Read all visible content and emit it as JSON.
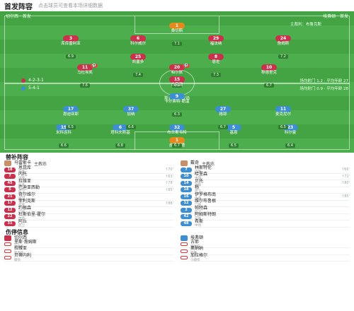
{
  "header": {
    "title": "首发阵容",
    "subtitle": "点击球员可查看本场详细数据"
  },
  "pitch": {
    "home_label": "切尔西 · 首发",
    "away_label": "埃弗顿 · 首发",
    "referee": "主裁判：布鲁克斯",
    "stadium": "斯坦福桥球场",
    "home_formation": "4-2-3-1",
    "away_formation": "5-4-1",
    "home_stat": "场均射门 1.2 · 平均年龄 27",
    "away_stat": "场均射门 0.9 · 平均年龄 28"
  },
  "home_players": [
    {
      "n": "1",
      "name": "桑切斯",
      "rate": "7.1",
      "role": "gk"
    },
    {
      "n": "3",
      "name": "库库雷利亚",
      "rate": "6.9",
      "role": "home"
    },
    {
      "n": "6",
      "name": "科尔威尔",
      "rate": "7.0",
      "role": "home"
    },
    {
      "n": "29",
      "name": "福法纳",
      "rate": "6.8",
      "role": "home"
    },
    {
      "n": "24",
      "name": "詹姆斯",
      "rate": "7.2",
      "role": "home"
    },
    {
      "n": "25",
      "name": "凯塞多",
      "rate": "7.4",
      "role": "home"
    },
    {
      "n": "8",
      "name": "恩佐",
      "rate": "7.3",
      "role": "home"
    },
    {
      "n": "11",
      "name": "马杜埃凯",
      "rate": "7.6",
      "role": "home",
      "badge": "⚽"
    },
    {
      "n": "20",
      "name": "帕尔默",
      "rate": "8.1",
      "role": "home",
      "badge": "⚽"
    },
    {
      "n": "10",
      "name": "穆德里克",
      "rate": "6.7",
      "role": "home"
    },
    {
      "n": "15",
      "name": "杰克逊",
      "rate": "7.0",
      "role": "home"
    }
  ],
  "away_players": [
    {
      "n": "1",
      "name": "皮克福德",
      "rate": "6.9",
      "role": "gk"
    },
    {
      "n": "19",
      "name": "米科连科",
      "rate": "6.6",
      "role": "away"
    },
    {
      "n": "6",
      "name": "塔科夫斯基",
      "rate": "6.8",
      "role": "away"
    },
    {
      "n": "32",
      "name": "布兰斯韦特",
      "rate": "6.7",
      "role": "away"
    },
    {
      "n": "5",
      "name": "基恩",
      "rate": "6.5",
      "role": "away"
    },
    {
      "n": "23",
      "name": "科尔曼",
      "rate": "6.4",
      "role": "away"
    },
    {
      "n": "17",
      "name": "恩迪亚耶",
      "rate": "6.5",
      "role": "away"
    },
    {
      "n": "37",
      "name": "加纳",
      "rate": "6.6",
      "role": "away"
    },
    {
      "n": "27",
      "name": "格耶",
      "rate": "6.7",
      "role": "away"
    },
    {
      "n": "11",
      "name": "麦克尼尔",
      "rate": "6.5",
      "role": "away"
    },
    {
      "n": "9",
      "name": "卡尔弗特-勒温",
      "rate": "6.3",
      "role": "away"
    }
  ],
  "subs": {
    "title": "替补阵容",
    "home_coach": "马雷斯卡",
    "home_coach_role": "主教练",
    "away_coach": "戴奇",
    "away_coach_role": "主教练",
    "home": [
      {
        "n": "18",
        "name": "恩昆库",
        "pos": "前锋",
        "ev": "↑70'"
      },
      {
        "n": "7",
        "name": "内托",
        "pos": "边锋",
        "ev": "↑63'"
      },
      {
        "n": "45",
        "name": "拉维亚",
        "pos": "中场",
        "ev": "↑78'"
      },
      {
        "n": "5",
        "name": "巴迪亚西勒",
        "pos": "后卫",
        "ev": "↑85'"
      },
      {
        "n": "21",
        "name": "奇尔维尔",
        "pos": "后卫",
        "ev": ""
      },
      {
        "n": "17",
        "name": "菲利克斯",
        "pos": "前锋",
        "ev": "↑88'"
      },
      {
        "n": "12",
        "name": "约根森",
        "pos": "门将",
        "ev": ""
      },
      {
        "n": "22",
        "name": "杜斯伯里-霍尔",
        "pos": "中场",
        "ev": ""
      },
      {
        "n": "31",
        "name": "阿丘",
        "pos": "后卫",
        "ev": ""
      }
    ],
    "away": [
      {
        "n": "7",
        "name": "林斯特伦",
        "pos": "边锋",
        "ev": "↑66'"
      },
      {
        "n": "10",
        "name": "哈里森",
        "pos": "中场",
        "ev": "↑72'"
      },
      {
        "n": "14",
        "name": "贝托",
        "pos": "前锋",
        "ev": "↑80'"
      },
      {
        "n": "18",
        "name": "杨",
        "pos": "后卫",
        "ev": ""
      },
      {
        "n": "16",
        "name": "伊罗格布南",
        "pos": "中场",
        "ev": "↑85'"
      },
      {
        "n": "12",
        "name": "维尔布鲁根",
        "pos": "门将",
        "ev": ""
      },
      {
        "n": "2",
        "name": "帕特森",
        "pos": "后卫",
        "ev": ""
      },
      {
        "n": "42",
        "name": "阿姆斯特朗",
        "pos": "前锋",
        "ev": ""
      },
      {
        "n": "48",
        "name": "希斯",
        "pos": "中场",
        "ev": ""
      }
    ]
  },
  "injuries": {
    "title": "伤停信息",
    "home_team": "切尔西",
    "away_team": "埃弗顿",
    "home": [
      {
        "name": "里斯·詹姆斯",
        "reason": "腿筋伤"
      },
      {
        "name": "拉维亚",
        "reason": "肌肉伤"
      },
      {
        "name": "贝蒂内利",
        "reason": "膝伤"
      }
    ],
    "away": [
      {
        "name": "古耶",
        "reason": "脚踝伤"
      },
      {
        "name": "奥纳纳",
        "reason": "停赛"
      },
      {
        "name": "加拉格尔",
        "reason": "小腿伤"
      }
    ]
  }
}
